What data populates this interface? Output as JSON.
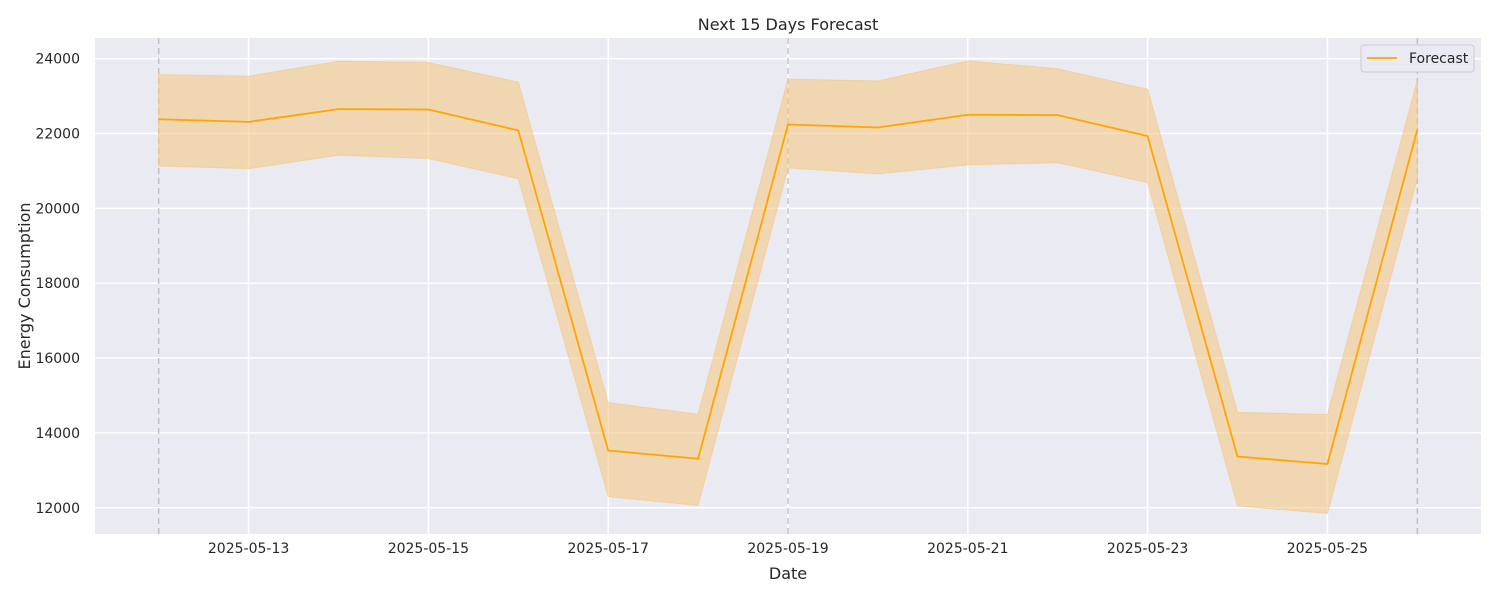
{
  "chart_data": {
    "type": "line",
    "title": "Next 15 Days Forecast",
    "xlabel": "Date",
    "ylabel": "Energy Consumption",
    "x": [
      "2025-05-12",
      "2025-05-13",
      "2025-05-14",
      "2025-05-15",
      "2025-05-16",
      "2025-05-17",
      "2025-05-18",
      "2025-05-19",
      "2025-05-20",
      "2025-05-21",
      "2025-05-22",
      "2025-05-23",
      "2025-05-24",
      "2025-05-25",
      "2025-05-26"
    ],
    "series": [
      {
        "name": "Forecast",
        "color": "#ffa500",
        "values": [
          22380,
          22310,
          22650,
          22640,
          22080,
          13530,
          13310,
          22240,
          22160,
          22500,
          22490,
          21930,
          13370,
          13170,
          22100
        ],
        "lower": [
          21130,
          21060,
          21420,
          21330,
          20790,
          12300,
          12060,
          21080,
          20920,
          21160,
          21220,
          20690,
          12050,
          11850,
          20800
        ],
        "upper": [
          23570,
          23530,
          23930,
          23900,
          23370,
          14810,
          14500,
          23450,
          23400,
          23940,
          23730,
          23180,
          14550,
          14490,
          23420
        ],
        "band_color": "#f5c57e"
      }
    ],
    "x_ticks": [
      "2025-05-13",
      "2025-05-15",
      "2025-05-17",
      "2025-05-19",
      "2025-05-21",
      "2025-05-23",
      "2025-05-25"
    ],
    "y_ticks": [
      12000,
      14000,
      16000,
      18000,
      20000,
      22000,
      24000
    ],
    "y_tick_labels": [
      "12000",
      "14000",
      "16000",
      "18000",
      "20000",
      "22000",
      "24000"
    ],
    "ylim": [
      11300,
      24550
    ],
    "xlim": [
      "2025-05-11T07:00",
      "2025-05-26T17:00"
    ],
    "vertical_markers": [
      "2025-05-12",
      "2025-05-19",
      "2025-05-26"
    ],
    "grid": true,
    "legend_position": "top-right",
    "background_color": "#eaeaf2"
  }
}
